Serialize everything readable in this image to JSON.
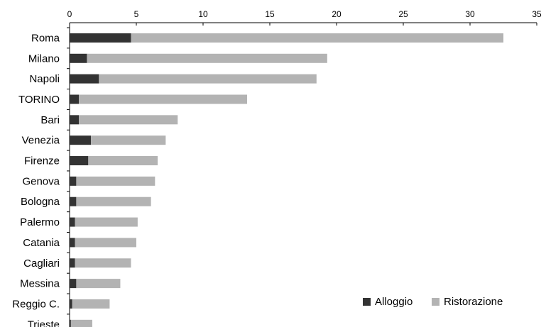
{
  "chart_data": {
    "type": "bar",
    "orientation": "horizontal",
    "stacked": true,
    "title": "",
    "xlabel": "",
    "ylabel": "",
    "xlim": [
      0,
      35
    ],
    "x_ticks": [
      0,
      5,
      10,
      15,
      20,
      25,
      30,
      35
    ],
    "x_axis_position": "top",
    "grid": false,
    "legend_position": "bottom-right",
    "categories": [
      "Roma",
      "Milano",
      "Napoli",
      "TORINO",
      "Bari",
      "Venezia",
      "Firenze",
      "Genova",
      "Bologna",
      "Palermo",
      "Catania",
      "Cagliari",
      "Messina",
      "Reggio C.",
      "Trieste"
    ],
    "series": [
      {
        "name": "Alloggio",
        "color": "#333333",
        "values": [
          4.6,
          1.3,
          2.2,
          0.7,
          0.7,
          1.6,
          1.4,
          0.5,
          0.5,
          0.4,
          0.4,
          0.4,
          0.5,
          0.2,
          0.1
        ]
      },
      {
        "name": "Ristorazione",
        "color": "#b3b3b3",
        "values": [
          27.9,
          18.0,
          16.3,
          12.6,
          7.4,
          5.6,
          5.2,
          5.9,
          5.6,
          4.7,
          4.6,
          4.2,
          3.3,
          2.8,
          1.6
        ]
      }
    ]
  }
}
